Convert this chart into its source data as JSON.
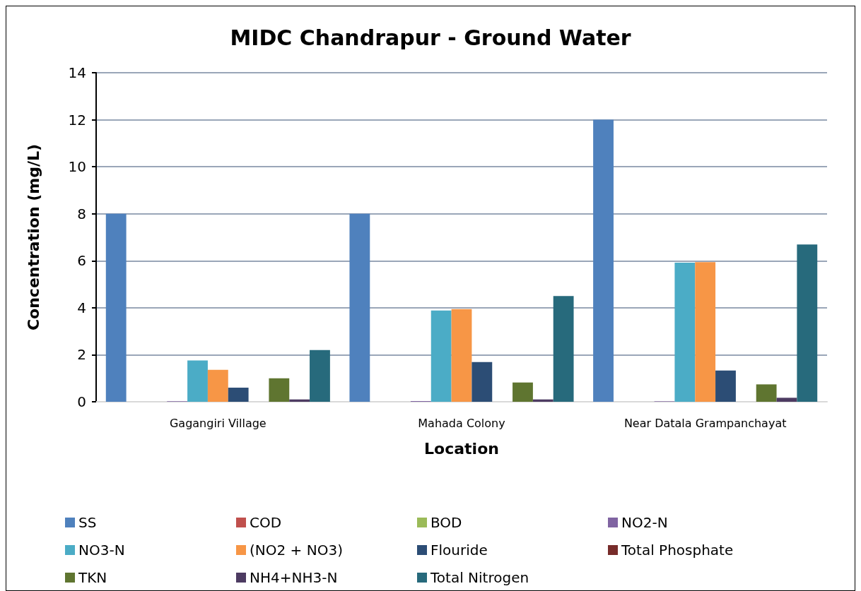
{
  "chart_data": {
    "type": "bar",
    "title": "MIDC Chandrapur - Ground Water",
    "xlabel": "Location",
    "ylabel": "Concentration (mg/L)",
    "categories": [
      "Gagangiri Village",
      "Mahada Colony",
      "Near Datala Grampanchayat"
    ],
    "series": [
      {
        "name": "SS",
        "color": "#4f81bd",
        "values": [
          8,
          8,
          12
        ]
      },
      {
        "name": "COD",
        "color": "#c0504d",
        "values": [
          null,
          null,
          null
        ]
      },
      {
        "name": "BOD",
        "color": "#9bbb59",
        "values": [
          null,
          null,
          null
        ]
      },
      {
        "name": "NO2-N",
        "color": "#8064a2",
        "values": [
          0.02,
          0.03,
          0.02
        ]
      },
      {
        "name": "NO3-N",
        "color": "#4bacc6",
        "values": [
          1.76,
          3.88,
          5.92
        ]
      },
      {
        "name": "(NO2 + NO3)",
        "color": "#f79646",
        "values": [
          1.36,
          3.94,
          5.94
        ]
      },
      {
        "name": "Flouride",
        "color": "#2c4d75",
        "values": [
          0.6,
          1.69,
          1.33
        ]
      },
      {
        "name": "Total Phosphate",
        "color": "#772c2a",
        "values": [
          null,
          null,
          null
        ]
      },
      {
        "name": "TKN",
        "color": "#5f7530",
        "values": [
          1.0,
          0.82,
          0.74
        ]
      },
      {
        "name": "NH4+NH3-N",
        "color": "#4d3b62",
        "values": [
          0.1,
          0.1,
          0.17
        ]
      },
      {
        "name": "Total Nitrogen",
        "color": "#276a7c",
        "values": [
          2.2,
          4.5,
          6.69
        ]
      }
    ],
    "ylim": [
      0,
      14
    ],
    "yticks": [
      0,
      2,
      4,
      6,
      8,
      10,
      12,
      14
    ],
    "grid": "y",
    "legend": "bottom"
  }
}
